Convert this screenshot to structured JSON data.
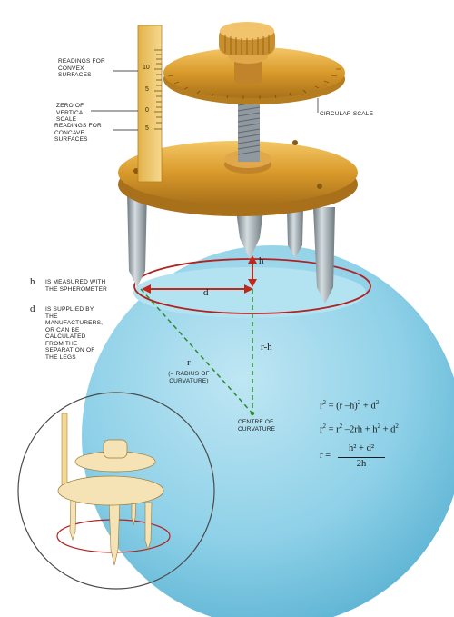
{
  "labels": {
    "convex": "READINGS FOR CONVEX SURFACES",
    "zero": "ZERO OF VERTICAL SCALE",
    "concave": "READINGS FOR CONCAVE SURFACES",
    "circular_scale": "CIRCULAR SCALE",
    "h_note_symbol": "h",
    "h_note_text": "IS MEASURED WITH THE SPHEROMETER",
    "d_note_symbol": "d",
    "d_note_text": "IS SUPPLIED BY THE MANUFACTURERS, OR CAN BE CALCULATED FROM THE SEPARATION OF THE LEGS",
    "radius_note": "(= RADIUS OF CURVATURE)",
    "centre": "CENTRE OF CURVATURE"
  },
  "diagram_symbols": {
    "h": "h",
    "d": "d",
    "r": "r",
    "r_minus_h": "r-h"
  },
  "vertical_scale_ticks": [
    "10",
    "5",
    "0",
    "5"
  ],
  "equations": {
    "eq1_lhs": "r",
    "eq1_rhs": "= (r –h)",
    "eq1_tail": " + d",
    "eq2_lhs": "r",
    "eq2_rhs": "= r",
    "eq2_tail": " –2rh + h",
    "eq2_end": " + d",
    "eq3_lhs": "r =",
    "eq3_num": "h² + d²",
    "eq3_den": "2h",
    "sq": "2"
  },
  "colors": {
    "sphere": "#8fd1e8",
    "sphere_dark": "#5cb3d3",
    "brass": "#d9a23a",
    "brass_dark": "#a8701a",
    "steel": "#9aa6ad",
    "red_circle": "#b22222",
    "dashed_green": "#2e8b2e",
    "red_arrow": "#c0281c"
  }
}
